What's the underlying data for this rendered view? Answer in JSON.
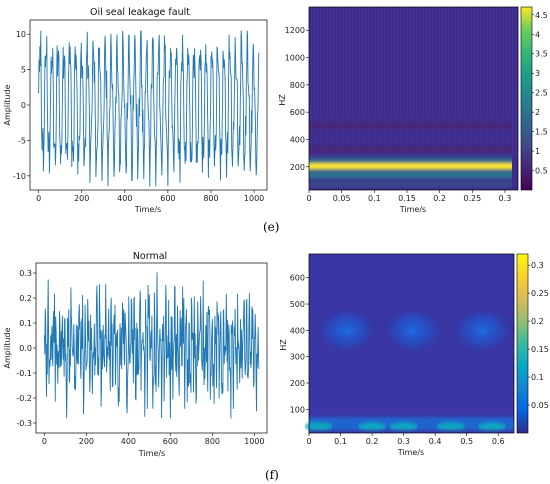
{
  "panel_labels": {
    "e": "(e)",
    "f": "(f)"
  },
  "chart_data": [
    {
      "id": "e_time",
      "type": "line",
      "title": "Oil seal leakage fault",
      "xlabel": "Time/s",
      "ylabel": "Amplitude",
      "xlim": [
        -40,
        1060
      ],
      "ylim": [
        -12,
        12
      ],
      "xticks": [
        0,
        200,
        400,
        600,
        800,
        1000
      ],
      "yticks": [
        -10,
        -5,
        0,
        5,
        10
      ],
      "n_samples": 1024,
      "line_color": "#1f77b4",
      "signal_profile": "periodic oscillation, peaks near +10 and troughs near -11"
    },
    {
      "id": "e_spectrogram",
      "type": "heatmap",
      "title": "",
      "xlabel": "Time/s",
      "ylabel": "HZ",
      "xlim": [
        0,
        0.32
      ],
      "ylim": [
        30,
        1370
      ],
      "xticks": [
        0,
        0.05,
        0.1,
        0.15,
        0.2,
        0.25,
        0.3
      ],
      "yticks": [
        200,
        400,
        600,
        800,
        1000,
        1200
      ],
      "colorbar": {
        "ticks": [
          0.5,
          1,
          1.5,
          2,
          2.5,
          3,
          3.5,
          4,
          4.5
        ],
        "range": [
          0,
          4.7
        ]
      },
      "bands_hz": [
        {
          "center": 205,
          "intensity": 4.4
        },
        {
          "center": 130,
          "intensity": 1.6
        },
        {
          "center": 70,
          "intensity": 1.2
        },
        {
          "center": 330,
          "intensity": 0.6
        },
        {
          "center": 500,
          "intensity": 0.5
        }
      ]
    },
    {
      "id": "f_time",
      "type": "line",
      "title": "Normal",
      "xlabel": "Time/s",
      "ylabel": "Amplitude",
      "xlim": [
        -40,
        1060
      ],
      "ylim": [
        -0.34,
        0.34
      ],
      "xticks": [
        0,
        200,
        400,
        600,
        800,
        1000
      ],
      "yticks": [
        -0.3,
        -0.2,
        -0.1,
        0.0,
        0.1,
        0.2,
        0.3
      ],
      "n_samples": 1024,
      "line_color": "#1f77b4",
      "signal_profile": "irregular noise-like signal between about -0.3 and +0.32"
    },
    {
      "id": "f_spectrogram",
      "type": "heatmap",
      "title": "",
      "xlabel": "Time/s",
      "ylabel": "HZ",
      "xlim": [
        0,
        0.65
      ],
      "ylim": [
        10,
        690
      ],
      "xticks": [
        0,
        0.1,
        0.2,
        0.3,
        0.4,
        0.5,
        0.6
      ],
      "yticks": [
        100,
        200,
        300,
        400,
        500,
        600
      ],
      "colorbar": {
        "ticks": [
          0.05,
          0.1,
          0.15,
          0.2,
          0.25,
          0.3
        ],
        "range": [
          0,
          0.32
        ]
      },
      "blobs": [
        {
          "t": 0.12,
          "hz": 400,
          "intensity": 0.1
        },
        {
          "t": 0.33,
          "hz": 400,
          "intensity": 0.1
        },
        {
          "t": 0.55,
          "hz": 400,
          "intensity": 0.1
        }
      ],
      "low_band_hz": [
        20,
        70
      ]
    }
  ]
}
